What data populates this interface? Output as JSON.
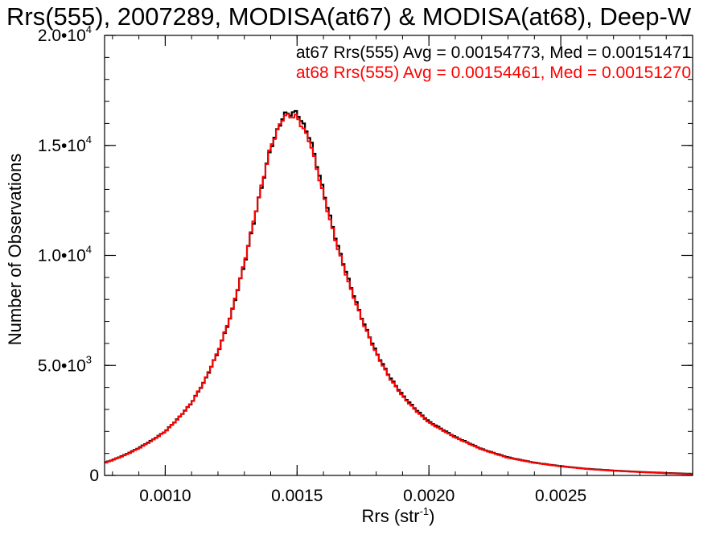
{
  "chart_data": {
    "type": "histogram",
    "title": "Rrs(555), 2007289, MODISA(at67) & MODISA(at68), Deep-W",
    "xlabel": "Rrs (str",
    "xlabel_sup": "-1",
    "xlabel_close": ")",
    "ylabel": "Number of Observations",
    "xlim": [
      0.00077,
      0.003
    ],
    "ylim": [
      0,
      20000
    ],
    "x_ticks": [
      {
        "value": 0.001,
        "label": "0.0010"
      },
      {
        "value": 0.0015,
        "label": "0.0015"
      },
      {
        "value": 0.002,
        "label": "0.0020"
      },
      {
        "value": 0.0025,
        "label": "0.0025"
      }
    ],
    "y_ticks": [
      {
        "value": 0,
        "mant": "0",
        "exp": ""
      },
      {
        "value": 5000,
        "mant": "5.0•10",
        "exp": "3"
      },
      {
        "value": 10000,
        "mant": "1.0•10",
        "exp": "4"
      },
      {
        "value": 15000,
        "mant": "1.5•10",
        "exp": "4"
      },
      {
        "value": 20000,
        "mant": "2.0•10",
        "exp": "4"
      }
    ],
    "series": [
      {
        "name": "at67",
        "color": "#000000",
        "stats": "at67 Rrs(555) Avg = 0.00154773, Med = 0.00151471",
        "points": [
          [
            0.00077,
            580
          ],
          [
            0.0008,
            700
          ],
          [
            0.00085,
            950
          ],
          [
            0.0009,
            1250
          ],
          [
            0.00095,
            1600
          ],
          [
            0.001,
            2000
          ],
          [
            0.00105,
            2600
          ],
          [
            0.0011,
            3300
          ],
          [
            0.00115,
            4300
          ],
          [
            0.0012,
            5600
          ],
          [
            0.00125,
            7300
          ],
          [
            0.0013,
            9600
          ],
          [
            0.00135,
            12300
          ],
          [
            0.0014,
            14900
          ],
          [
            0.00145,
            16400
          ],
          [
            0.0015,
            16500
          ],
          [
            0.00155,
            15300
          ],
          [
            0.0016,
            12900
          ],
          [
            0.00165,
            10600
          ],
          [
            0.0017,
            8700
          ],
          [
            0.00175,
            7000
          ],
          [
            0.0018,
            5600
          ],
          [
            0.00185,
            4500
          ],
          [
            0.0019,
            3650
          ],
          [
            0.00195,
            3000
          ],
          [
            0.002,
            2450
          ],
          [
            0.0021,
            1750
          ],
          [
            0.0022,
            1200
          ],
          [
            0.0023,
            820
          ],
          [
            0.0024,
            580
          ],
          [
            0.0025,
            420
          ],
          [
            0.0026,
            300
          ],
          [
            0.0027,
            220
          ],
          [
            0.0028,
            160
          ],
          [
            0.0029,
            110
          ],
          [
            0.003,
            70
          ]
        ]
      },
      {
        "name": "at68",
        "color": "#ff0000",
        "stats": "at68 Rrs(555) Avg = 0.00154461, Med = 0.00151270",
        "points": [
          [
            0.00077,
            560
          ],
          [
            0.0008,
            690
          ],
          [
            0.00085,
            930
          ],
          [
            0.0009,
            1230
          ],
          [
            0.00095,
            1580
          ],
          [
            0.001,
            1990
          ],
          [
            0.00105,
            2590
          ],
          [
            0.0011,
            3300
          ],
          [
            0.00115,
            4310
          ],
          [
            0.0012,
            5620
          ],
          [
            0.00125,
            7330
          ],
          [
            0.0013,
            9650
          ],
          [
            0.00135,
            12350
          ],
          [
            0.0014,
            14950
          ],
          [
            0.00145,
            16350
          ],
          [
            0.0015,
            16300
          ],
          [
            0.00155,
            15150
          ],
          [
            0.0016,
            12750
          ],
          [
            0.00165,
            10500
          ],
          [
            0.0017,
            8600
          ],
          [
            0.00175,
            6950
          ],
          [
            0.0018,
            5550
          ],
          [
            0.00185,
            4450
          ],
          [
            0.0019,
            3600
          ],
          [
            0.00195,
            2950
          ],
          [
            0.002,
            2400
          ],
          [
            0.0021,
            1720
          ],
          [
            0.0022,
            1180
          ],
          [
            0.0023,
            800
          ],
          [
            0.0024,
            570
          ],
          [
            0.0025,
            410
          ],
          [
            0.0026,
            290
          ],
          [
            0.0027,
            210
          ],
          [
            0.0028,
            150
          ],
          [
            0.0029,
            100
          ],
          [
            0.003,
            60
          ]
        ]
      }
    ]
  }
}
